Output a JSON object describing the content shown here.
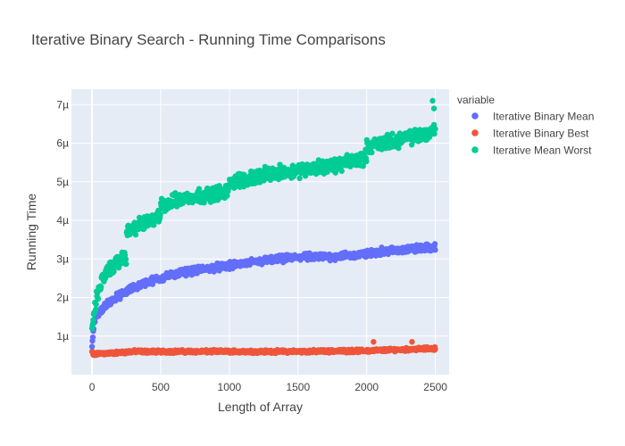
{
  "chart_data": {
    "type": "scatter",
    "title": "Iterative Binary Search - Running Time Comparisons",
    "xlabel": "Length of Array",
    "ylabel": "Running Time",
    "xlim": [
      -150,
      2600
    ],
    "ylim": [
      0,
      7.4
    ],
    "x_ticks": [
      0,
      500,
      1000,
      1500,
      2000,
      2500
    ],
    "x_tick_labels": [
      "0",
      "500",
      "1000",
      "1500",
      "2000",
      "2500"
    ],
    "y_ticks": [
      1,
      2,
      3,
      4,
      5,
      6,
      7
    ],
    "y_tick_labels": [
      "1µ",
      "2µ",
      "3µ",
      "4µ",
      "5µ",
      "6µ",
      "7µ"
    ],
    "y_unit": "µ (microseconds)",
    "grid": true,
    "legend_title": "variable",
    "legend_position": "right",
    "series": [
      {
        "name": "Iterative Binary Mean",
        "color": "#636efa",
        "x": [
          0,
          10,
          25,
          50,
          75,
          100,
          150,
          200,
          250,
          300,
          400,
          500,
          600,
          700,
          800,
          900,
          1000,
          1100,
          1200,
          1300,
          1400,
          1500,
          1600,
          1700,
          1800,
          1900,
          2000,
          2100,
          2200,
          2300,
          2400,
          2500
        ],
        "values": [
          0.75,
          1.2,
          1.45,
          1.6,
          1.7,
          1.8,
          1.95,
          2.05,
          2.15,
          2.25,
          2.4,
          2.5,
          2.6,
          2.68,
          2.72,
          2.78,
          2.82,
          2.88,
          2.93,
          2.97,
          3.0,
          3.05,
          3.05,
          3.05,
          3.07,
          3.1,
          3.12,
          3.2,
          3.22,
          3.25,
          3.28,
          3.3
        ],
        "spread": 0.07
      },
      {
        "name": "Iterative Binary Best",
        "color": "#ef553b",
        "x": [
          0,
          10,
          25,
          50,
          100,
          200,
          300,
          500,
          800,
          1000,
          1500,
          2000,
          2500
        ],
        "values": [
          0.6,
          0.5,
          0.52,
          0.55,
          0.55,
          0.57,
          0.6,
          0.6,
          0.6,
          0.6,
          0.6,
          0.62,
          0.68
        ],
        "spread": 0.03,
        "outliers": [
          [
            2050,
            0.85
          ],
          [
            2330,
            0.85
          ]
        ]
      },
      {
        "name": "Iterative Mean Worst",
        "color": "#00cc96",
        "x": [
          0,
          10,
          25,
          50,
          75,
          100,
          150,
          200,
          249,
          250,
          300,
          400,
          499,
          500,
          600,
          700,
          800,
          900,
          999,
          1000,
          1100,
          1200,
          1300,
          1400,
          1500,
          1600,
          1700,
          1800,
          1900,
          1999,
          2000,
          2100,
          2200,
          2300,
          2400,
          2500
        ],
        "values": [
          1.2,
          1.5,
          1.85,
          2.2,
          2.45,
          2.6,
          2.8,
          2.95,
          3.05,
          3.7,
          3.8,
          3.95,
          4.1,
          4.4,
          4.5,
          4.6,
          4.65,
          4.7,
          4.75,
          5.0,
          5.05,
          5.15,
          5.2,
          5.25,
          5.3,
          5.35,
          5.4,
          5.45,
          5.55,
          5.65,
          5.9,
          6.0,
          6.05,
          6.15,
          6.2,
          6.35
        ],
        "spread": 0.14,
        "outliers": [
          [
            2480,
            7.1
          ],
          [
            2490,
            6.9
          ]
        ]
      }
    ]
  }
}
